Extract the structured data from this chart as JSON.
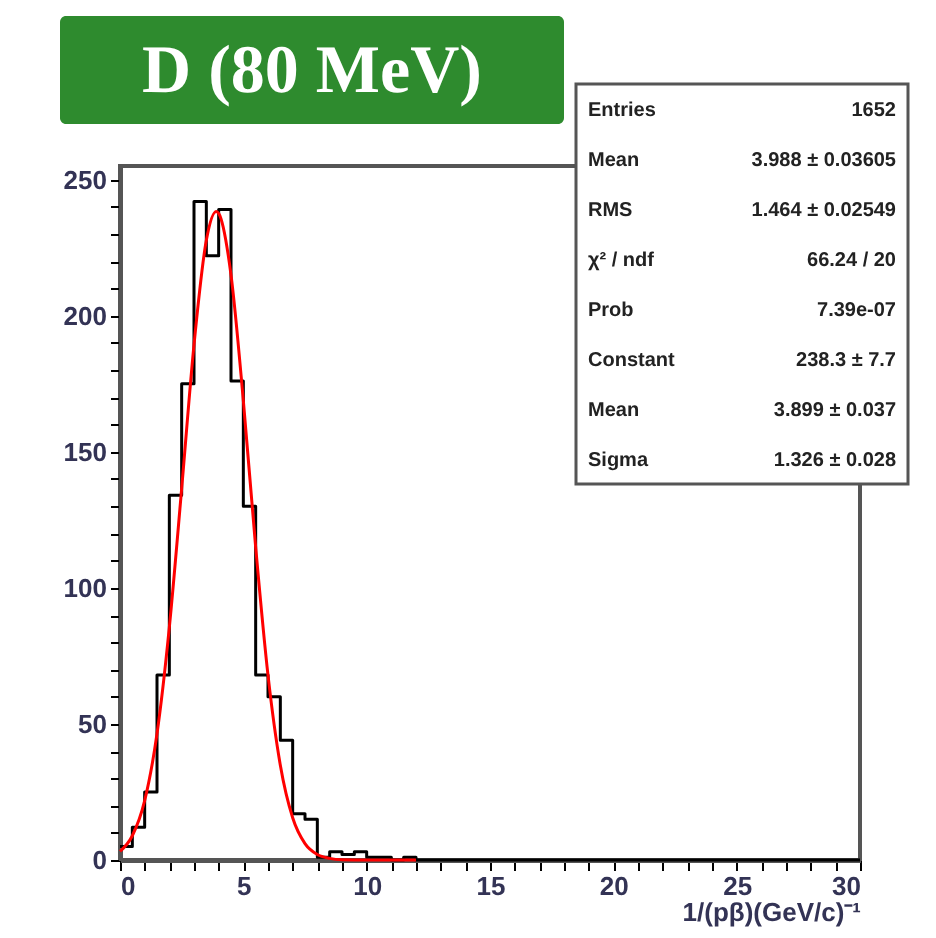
{
  "chart_data": {
    "type": "histogram",
    "title": "D (80 MeV)",
    "xlabel": "1/(pβ)(GeV/c)⁻¹",
    "bins": [
      0,
      0.5,
      1,
      1.5,
      2,
      2.5,
      3,
      3.5,
      4,
      4.5,
      5,
      5.5,
      6,
      6.5,
      7,
      7.5,
      8,
      8.5,
      9,
      9.5,
      10,
      10.5,
      11,
      11.5,
      12,
      12.5,
      13,
      13.5,
      14,
      14.5,
      15,
      15.5,
      16,
      16.5,
      17,
      17.5,
      18,
      18.5,
      19,
      19.5,
      20,
      20.5,
      21,
      21.5,
      22,
      22.5,
      23,
      23.5,
      24,
      24.5,
      25,
      25.5,
      26,
      26.5,
      27,
      27.5,
      28,
      28.5,
      29,
      29.5,
      30
    ],
    "series": [
      {
        "type": "histogram",
        "color": "#000000",
        "values": [
          5,
          12,
          25,
          68,
          134,
          175,
          242,
          222,
          239,
          176,
          130,
          68,
          60,
          44,
          17,
          15,
          1,
          3,
          2,
          3,
          1,
          1,
          0,
          1,
          0,
          0,
          0,
          0,
          0,
          0,
          0,
          0,
          0,
          0,
          0,
          0,
          0,
          0,
          0,
          0,
          0,
          0,
          0,
          0,
          0,
          0,
          0,
          0,
          0,
          0,
          0,
          0,
          0,
          0,
          0,
          0,
          0,
          0,
          0,
          0
        ]
      },
      {
        "type": "line",
        "color": "#ff0000",
        "x": [
          0,
          0.5,
          1,
          1.5,
          2,
          2.5,
          3,
          3.5,
          3.9,
          4,
          4.5,
          5,
          5.5,
          6,
          6.5,
          7,
          7.5,
          8,
          8.5,
          9,
          10,
          12
        ],
        "values": [
          3.2,
          8.9,
          21.8,
          46.4,
          85.5,
          136.5,
          189.3,
          227.7,
          238.3,
          237.6,
          215.0,
          168.8,
          115.0,
          67.9,
          34.8,
          15.5,
          6.0,
          2.0,
          0.6,
          0.1,
          0,
          0
        ]
      }
    ],
    "xlim": [
      0,
      30
    ],
    "ylim": [
      0,
      255
    ],
    "xticks": [
      0,
      {
        "value": 1,
        "label": null
      },
      {
        "value": 2,
        "label": null
      },
      {
        "value": 3,
        "label": null
      },
      {
        "value": 4,
        "label": null
      },
      5,
      {
        "value": 6,
        "label": null
      },
      {
        "value": 7,
        "label": null
      },
      {
        "value": 8,
        "label": null
      },
      {
        "value": 9,
        "label": null
      },
      10,
      {
        "value": 11,
        "label": null
      },
      {
        "value": 12,
        "label": null
      },
      {
        "value": 13,
        "label": null
      },
      {
        "value": 14,
        "label": null
      },
      15,
      {
        "value": 16,
        "label": null
      },
      {
        "value": 17,
        "label": null
      },
      {
        "value": 18,
        "label": null
      },
      {
        "value": 19,
        "label": null
      },
      20,
      {
        "value": 21,
        "label": null
      },
      {
        "value": 22,
        "label": null
      },
      {
        "value": 23,
        "label": null
      },
      {
        "value": 24,
        "label": null
      },
      25,
      {
        "value": 26,
        "label": null
      },
      {
        "value": 27,
        "label": null
      },
      {
        "value": 28,
        "label": null
      },
      {
        "value": 29,
        "label": null
      },
      30
    ],
    "yticks": [
      0,
      {
        "value": 10,
        "label": null
      },
      {
        "value": 20,
        "label": null
      },
      {
        "value": 30,
        "label": null
      },
      {
        "value": 40,
        "label": null
      },
      50,
      {
        "value": 60,
        "label": null
      },
      {
        "value": 70,
        "label": null
      },
      {
        "value": 80,
        "label": null
      },
      {
        "value": 90,
        "label": null
      },
      100,
      {
        "value": 110,
        "label": null
      },
      {
        "value": 120,
        "label": null
      },
      {
        "value": 130,
        "label": null
      },
      {
        "value": 140,
        "label": null
      },
      150,
      {
        "value": 160,
        "label": null
      },
      {
        "value": 170,
        "label": null
      },
      {
        "value": 180,
        "label": null
      },
      {
        "value": 190,
        "label": null
      },
      200,
      {
        "value": 210,
        "label": null
      },
      {
        "value": 220,
        "label": null
      },
      {
        "value": 230,
        "label": null
      },
      {
        "value": 240,
        "label": null
      },
      250
    ],
    "grid": false,
    "annotations": [
      "Entries",
      "1652",
      "Mean",
      "3.988 ± 0.03605",
      "RMS",
      "1.464 ± 0.02549",
      "χ² / ndf",
      "66.24 / 20",
      "Prob",
      "7.39e-07",
      "Constant",
      "238.3 ± 7.7",
      "Mean",
      "3.899 ± 0.037",
      "Sigma",
      "1.326 ± 0.028"
    ]
  }
}
